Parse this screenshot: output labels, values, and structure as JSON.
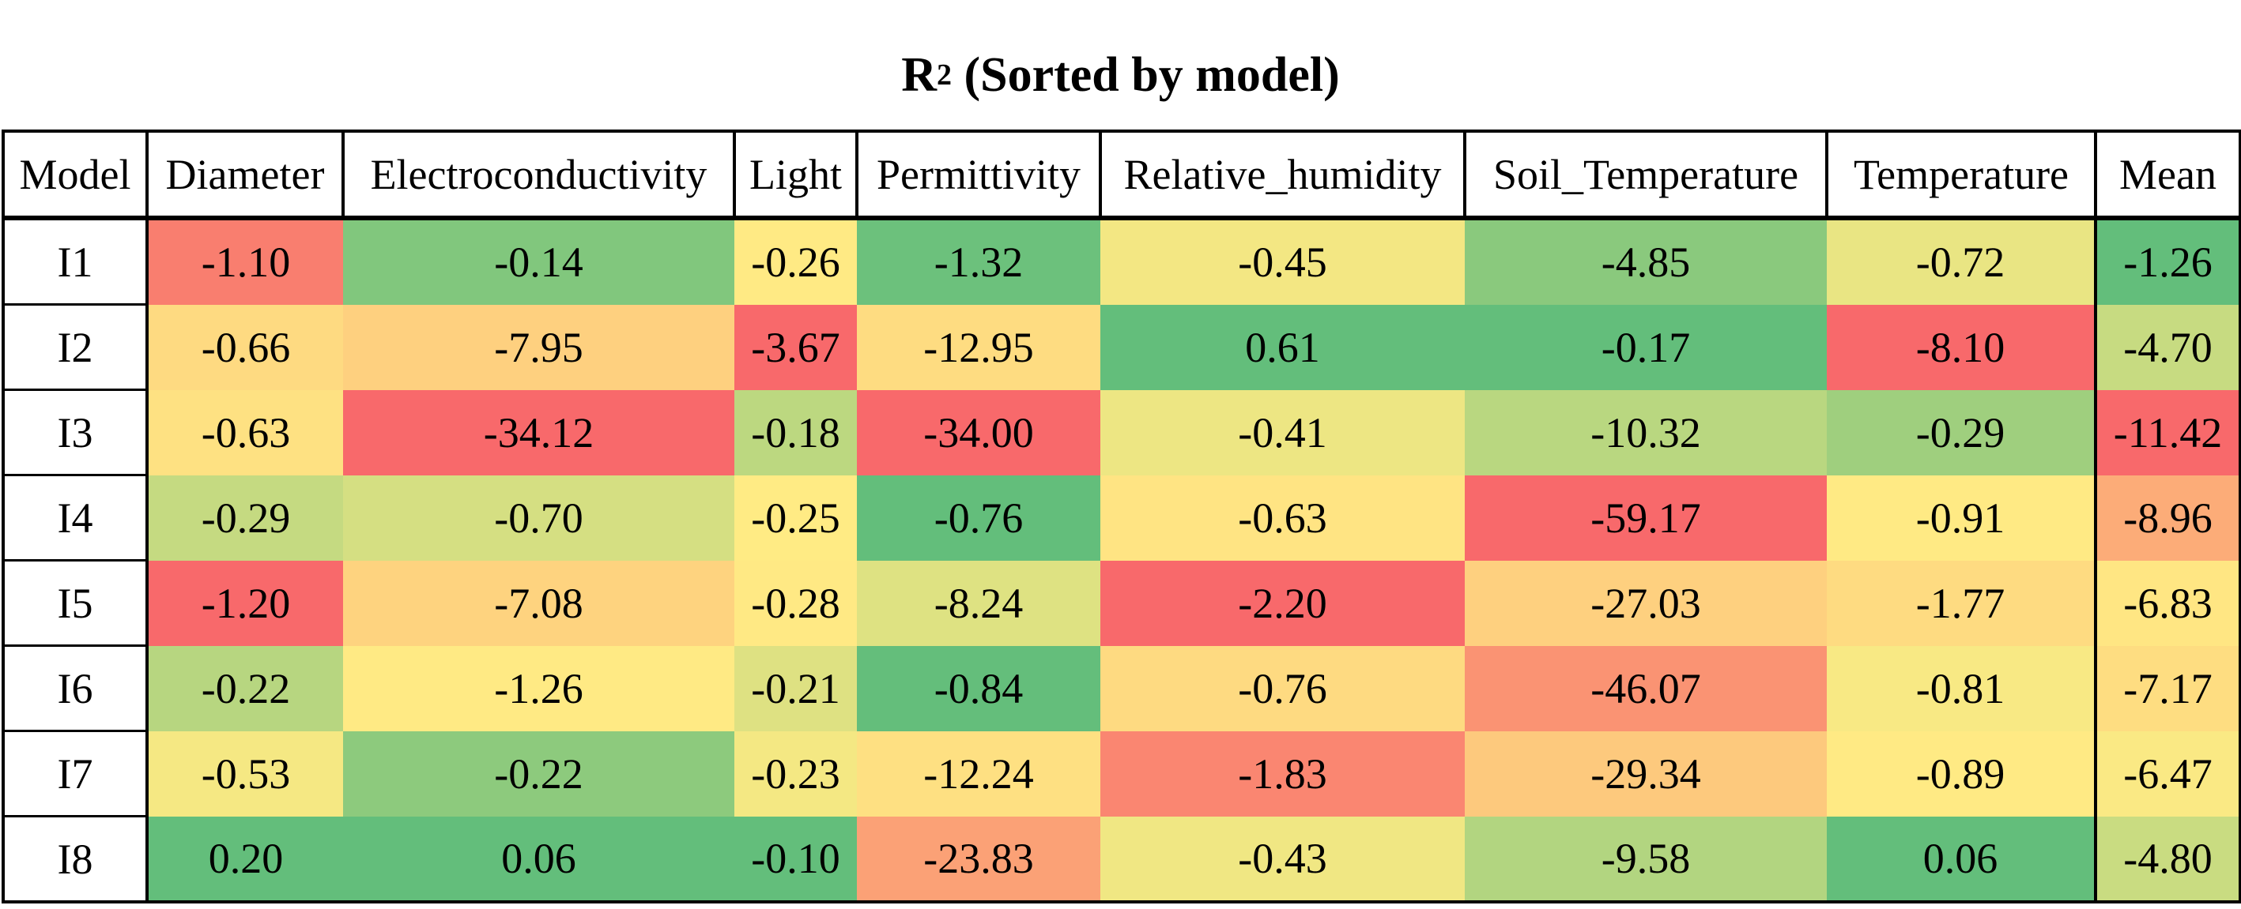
{
  "title": "R",
  "title_sup": "2",
  "title_rest": " (Sorted by model)",
  "colors": {
    "low": "#f8696b",
    "mid": "#ffeb84",
    "high": "#63be7b"
  },
  "chart_data": {
    "type": "heatmap",
    "title": "R² (Sorted by model)",
    "columns": [
      "Model",
      "Diameter",
      "Electroconductivity",
      "Light",
      "Permittivity",
      "Relative_humidity",
      "Soil_Temperature",
      "Temperature",
      "Mean"
    ],
    "rows": [
      {
        "model": "I1",
        "values": [
          "-1.10",
          "-0.14",
          "-0.26",
          "-1.32",
          "-0.45",
          "-4.85",
          "-0.72",
          "-1.26"
        ]
      },
      {
        "model": "I2",
        "values": [
          "-0.66",
          "-7.95",
          "-3.67",
          "-12.95",
          "0.61",
          "-0.17",
          "-8.10",
          "-4.70"
        ]
      },
      {
        "model": "I3",
        "values": [
          "-0.63",
          "-34.12",
          "-0.18",
          "-34.00",
          "-0.41",
          "-10.32",
          "-0.29",
          "-11.42"
        ]
      },
      {
        "model": "I4",
        "values": [
          "-0.29",
          "-0.70",
          "-0.25",
          "-0.76",
          "-0.63",
          "-59.17",
          "-0.91",
          "-8.96"
        ]
      },
      {
        "model": "I5",
        "values": [
          "-1.20",
          "-7.08",
          "-0.28",
          "-8.24",
          "-2.20",
          "-27.03",
          "-1.77",
          "-6.83"
        ]
      },
      {
        "model": "I6",
        "values": [
          "-0.22",
          "-1.26",
          "-0.21",
          "-0.84",
          "-0.76",
          "-46.07",
          "-0.81",
          "-7.17"
        ]
      },
      {
        "model": "I7",
        "values": [
          "-0.53",
          "-0.22",
          "-0.23",
          "-12.24",
          "-1.83",
          "-29.34",
          "-0.89",
          "-6.47"
        ]
      },
      {
        "model": "I8",
        "values": [
          "0.20",
          "0.06",
          "-0.10",
          "-23.83",
          "-0.43",
          "-9.58",
          "0.06",
          "-4.80"
        ]
      }
    ]
  }
}
